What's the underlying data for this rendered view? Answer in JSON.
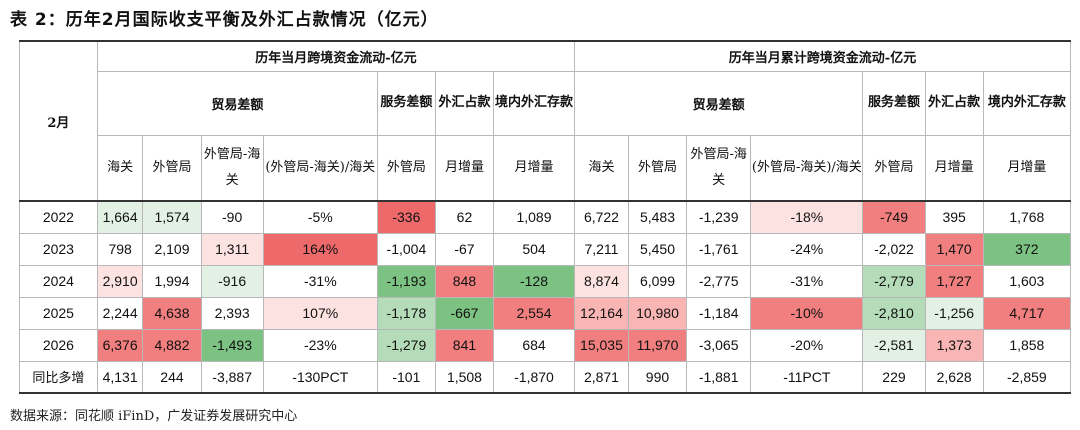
{
  "title": "表 2：历年2月国际收支平衡及外汇占款情况（亿元）",
  "headers": {
    "month": "2月",
    "group_monthly": "历年当月跨境资金流动-亿元",
    "group_cumulative": "历年当月累计跨境资金流动-亿元",
    "trade_balance": "贸易差额",
    "services": "服务差额",
    "fx_funds": "外汇占款",
    "domestic_fx_deposit": "境内外汇存款",
    "customs": "海关",
    "safe": "外管局",
    "safe_minus_customs": "外管局-海关",
    "ratio": "(外管局-海关)/海关",
    "sub_safe": "外管局",
    "monthly_increase": "月增量"
  },
  "rows": [
    {
      "year": "2022",
      "m": [
        "1,664",
        "1,574",
        "-90",
        "-5%",
        "-336",
        "62",
        "1,089"
      ],
      "c": [
        "6,722",
        "5,483",
        "-1,239",
        "-18%",
        "-749",
        "395",
        "1,768"
      ]
    },
    {
      "year": "2023",
      "m": [
        "798",
        "2,109",
        "1,311",
        "164%",
        "-1,004",
        "-67",
        "504"
      ],
      "c": [
        "7,211",
        "5,450",
        "-1,761",
        "-24%",
        "-2,022",
        "1,470",
        "372"
      ]
    },
    {
      "year": "2024",
      "m": [
        "2,910",
        "1,994",
        "-916",
        "-31%",
        "-1,193",
        "848",
        "-128"
      ],
      "c": [
        "8,874",
        "6,099",
        "-2,775",
        "-31%",
        "-2,779",
        "1,727",
        "1,603"
      ]
    },
    {
      "year": "2025",
      "m": [
        "2,244",
        "4,638",
        "2,393",
        "107%",
        "-1,178",
        "-667",
        "2,554"
      ],
      "c": [
        "12,164",
        "10,980",
        "-1,184",
        "-10%",
        "-2,810",
        "-1,256",
        "4,717"
      ]
    },
    {
      "year": "2026",
      "m": [
        "6,376",
        "4,882",
        "-1,493",
        "-23%",
        "-1,279",
        "841",
        "684"
      ],
      "c": [
        "15,035",
        "11,970",
        "-3,065",
        "-20%",
        "-2,581",
        "1,373",
        "1,858"
      ]
    }
  ],
  "yoy": {
    "label": "同比多增",
    "m": [
      "4,131",
      "244",
      "-3,887",
      "-130PCT",
      "-101",
      "1,508",
      "-1,870"
    ],
    "c": [
      "2,871",
      "990",
      "-1,881",
      "-11PCT",
      "229",
      "2,628",
      "-2,859"
    ]
  },
  "source": "数据来源：同花顺 iFinD，广发证券发展研究中心",
  "colors": {
    "r1": "#fde2e2",
    "r2": "#f9b4b4",
    "r3": "#f27f7f",
    "r4": "#ee6a6a",
    "g1": "#e3f1e4",
    "g2": "#b5dcb8",
    "g3": "#7cc283",
    "g4": "#5fb56a"
  },
  "cell_colors": {
    "m": [
      [
        "g1",
        "g1",
        "",
        "",
        "r4",
        "",
        ""
      ],
      [
        "",
        "",
        "r1",
        "r4",
        "",
        "",
        ""
      ],
      [
        "r1",
        "",
        "g1",
        "",
        "g3",
        "r3",
        "g3"
      ],
      [
        "",
        "r3",
        "",
        "r1",
        "g2",
        "g3",
        "r3"
      ],
      [
        "r3",
        "r3",
        "g3",
        "",
        "g2",
        "r3",
        ""
      ]
    ],
    "c": [
      [
        "",
        "",
        "",
        "r1",
        "r3",
        "",
        ""
      ],
      [
        "",
        "",
        "",
        "",
        "",
        "r3",
        "g3"
      ],
      [
        "r1",
        "",
        "",
        "",
        "g2",
        "r3",
        ""
      ],
      [
        "r2",
        "r2",
        "",
        "r3",
        "g2",
        "g1",
        "r3"
      ],
      [
        "r3",
        "r3",
        "",
        "",
        "g1",
        "r2",
        ""
      ]
    ]
  }
}
